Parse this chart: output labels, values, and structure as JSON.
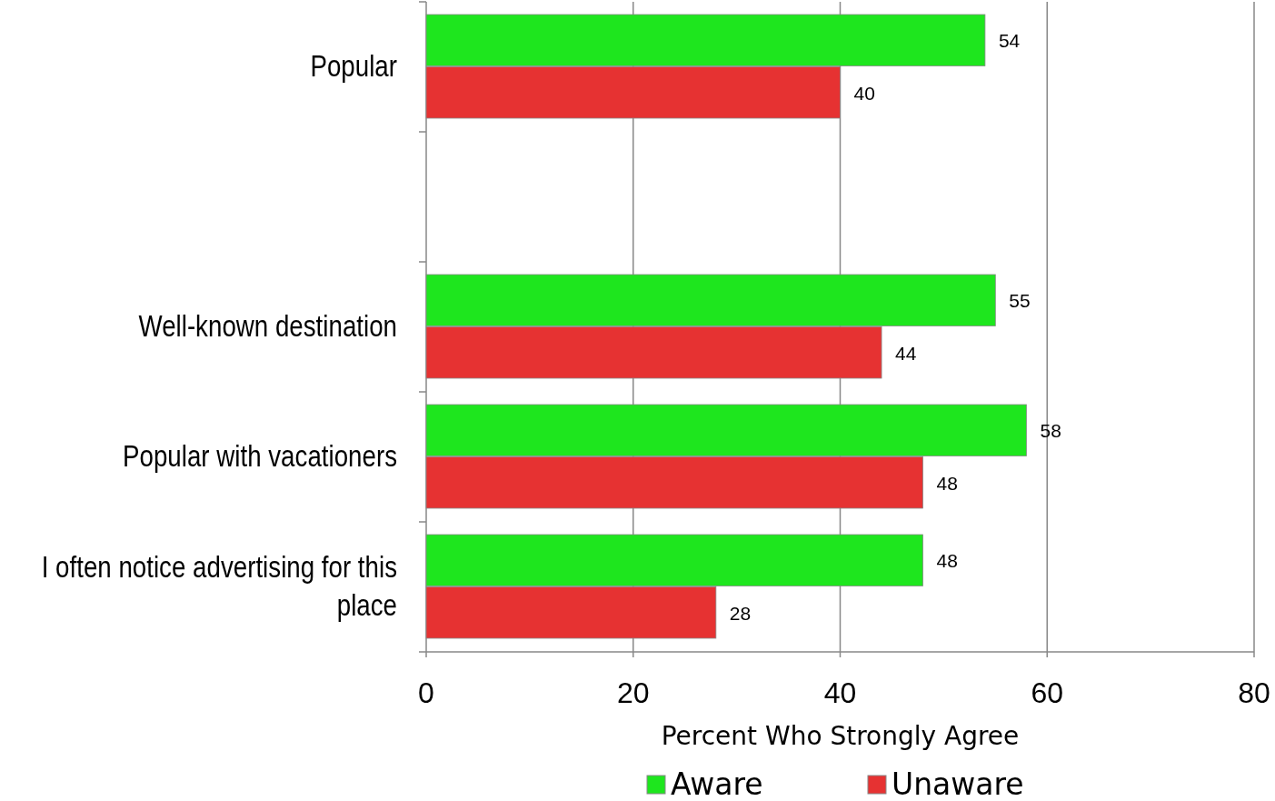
{
  "chart_data": {
    "type": "bar",
    "orientation": "horizontal",
    "categories": [
      "Popular",
      null,
      "Well-known destination",
      "Popular with vacationers",
      "I often notice advertising for this place"
    ],
    "series": [
      {
        "name": "Aware",
        "color": "#1ee61e",
        "values": [
          54,
          null,
          55,
          58,
          48
        ]
      },
      {
        "name": "Unaware",
        "color": "#e63232",
        "values": [
          40,
          null,
          44,
          48,
          28
        ]
      }
    ],
    "xlim": [
      0,
      80
    ],
    "xticks": [
      0,
      20,
      40,
      60,
      80
    ],
    "xlabel": "Percent Who Strongly Agree",
    "grid": "x",
    "legend": "bottom",
    "data_labels": true
  }
}
